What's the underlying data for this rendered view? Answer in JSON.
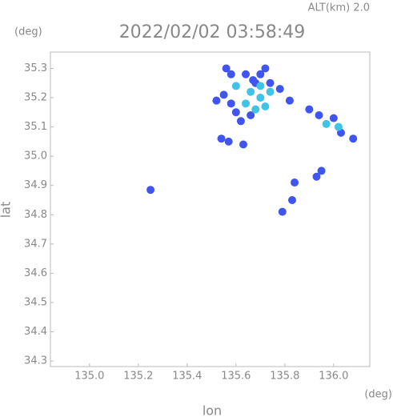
{
  "chart_data": {
    "type": "scatter",
    "title": "2022/02/02 03:58:49",
    "subtitle": "ALT(km) 2.0",
    "x_label": "lon",
    "y_label": "lat",
    "x_unit": "(deg)",
    "y_unit": "(deg)",
    "xlim": [
      134.84,
      136.148
    ],
    "ylim": [
      34.281,
      35.356
    ],
    "xticks": [
      {
        "value": 135.0,
        "label": "135.0"
      },
      {
        "value": 135.2,
        "label": "135.2"
      },
      {
        "value": 135.4,
        "label": "135.4"
      },
      {
        "value": 135.6,
        "label": "135.6"
      },
      {
        "value": 135.8,
        "label": "135.8"
      },
      {
        "value": 136.0,
        "label": "136.0"
      }
    ],
    "yticks": [
      {
        "value": 34.3,
        "label": "34.3"
      },
      34.4,
      34.5,
      34.6,
      34.7,
      34.8,
      34.9,
      {
        "value": 35.0,
        "label": "35.0"
      },
      35.1,
      35.2,
      35.3
    ],
    "series": [
      {
        "color": "#3f55ee",
        "x": [
          135.56,
          135.58,
          135.64,
          135.55,
          135.58,
          135.52,
          135.6,
          135.62,
          135.66,
          135.7,
          135.78,
          135.82,
          135.9,
          135.94,
          136.0,
          136.03,
          136.08,
          135.93,
          135.95,
          135.84,
          135.83,
          135.79,
          135.25,
          135.54,
          135.57,
          135.63,
          135.68,
          135.74,
          135.72,
          135.67
        ],
        "y": [
          35.3,
          35.28,
          35.28,
          35.21,
          35.18,
          35.19,
          35.15,
          35.12,
          35.14,
          35.28,
          35.23,
          35.19,
          35.16,
          35.14,
          35.13,
          35.08,
          35.06,
          34.93,
          34.95,
          34.91,
          34.85,
          34.81,
          34.885,
          35.06,
          35.05,
          35.04,
          35.25,
          35.25,
          35.3,
          35.26
        ]
      },
      {
        "color": "#3fc3e6",
        "x": [
          135.66,
          135.7,
          135.72,
          135.68,
          135.74,
          135.64,
          135.97,
          136.02,
          135.6,
          135.7
        ],
        "y": [
          35.22,
          35.2,
          35.17,
          35.16,
          35.22,
          35.18,
          35.11,
          35.1,
          35.24,
          35.24
        ]
      }
    ]
  }
}
